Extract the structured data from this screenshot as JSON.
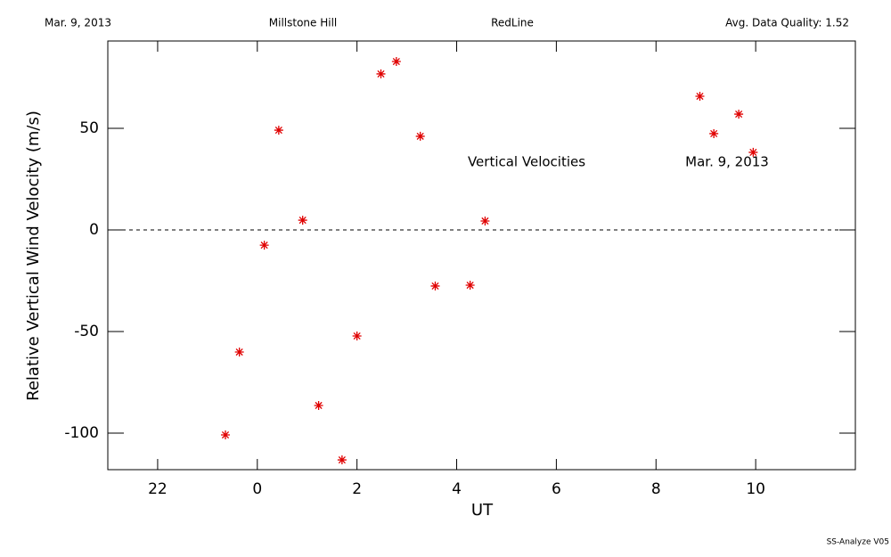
{
  "chart_data": {
    "type": "scatter",
    "header": [
      "Mar. 9, 2013",
      "Millstone Hill",
      "RedLine",
      "Avg. Data Quality: 1.52"
    ],
    "annotations": [
      "Vertical Velocities",
      "Mar. 9, 2013"
    ],
    "footer": "SS-Analyze V05",
    "x_label": "UT",
    "y_label": "Relative Vertical Wind Velocity (m/s)",
    "color": "#e00000",
    "reference_line": 0,
    "xlim": [
      -3,
      12
    ],
    "ylim": [
      -118,
      93
    ],
    "xticks": [
      {
        "value": -2,
        "label": "22"
      },
      0,
      2,
      4,
      6,
      8,
      10
    ],
    "yticks": [
      -100,
      -50,
      0,
      50
    ],
    "x": [
      -0.64,
      -0.36,
      0.14,
      0.43,
      0.91,
      1.23,
      1.7,
      2.0,
      2.48,
      2.79,
      3.27,
      3.57,
      4.27,
      4.57,
      8.88,
      9.16,
      9.66,
      9.95
    ],
    "values": [
      -100.9,
      -60.1,
      -7.5,
      49.1,
      4.8,
      -86.4,
      -113.2,
      -52.2,
      76.8,
      82.9,
      46.1,
      -27.6,
      -27.2,
      4.4,
      65.8,
      47.4,
      57.0,
      38.2
    ]
  }
}
